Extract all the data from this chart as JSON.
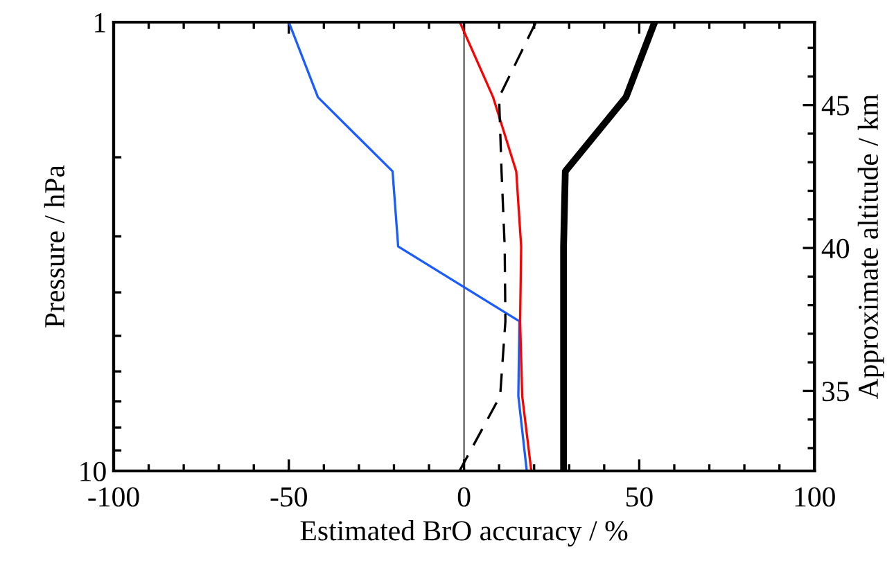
{
  "chart_data": {
    "type": "line",
    "xlabel": "Estimated BrO accuracy / %",
    "ylabel": "Pressure / hPa",
    "y2label": "Approximate altitude / km",
    "log": "y",
    "grid": false,
    "legend": false,
    "marker": "none",
    "xlim": [
      -100,
      100
    ],
    "xticks": [
      -100,
      {
        "value": -90,
        "label": null
      },
      {
        "value": -80,
        "label": null
      },
      {
        "value": -70,
        "label": null
      },
      {
        "value": -60,
        "label": null
      },
      -50,
      {
        "value": -40,
        "label": null
      },
      {
        "value": -30,
        "label": null
      },
      {
        "value": -20,
        "label": null
      },
      {
        "value": -10,
        "label": null
      },
      0,
      {
        "value": 10,
        "label": null
      },
      {
        "value": 20,
        "label": null
      },
      {
        "value": 30,
        "label": null
      },
      {
        "value": 40,
        "label": null
      },
      50,
      {
        "value": 60,
        "label": null
      },
      {
        "value": 70,
        "label": null
      },
      {
        "value": 80,
        "label": null
      },
      {
        "value": 90,
        "label": null
      },
      100
    ],
    "ylim": [
      10,
      1
    ],
    "yticks": [
      1,
      {
        "value": 2,
        "label": null
      },
      {
        "value": 3,
        "label": null
      },
      {
        "value": 4,
        "label": null
      },
      {
        "value": 5,
        "label": null
      },
      {
        "value": 6,
        "label": null
      },
      {
        "value": 7,
        "label": null
      },
      {
        "value": 8,
        "label": null
      },
      {
        "value": 9,
        "label": null
      },
      10
    ],
    "y2lim": [
      32.2,
      47.9
    ],
    "y2ticks": [
      {
        "value": 33,
        "label": null
      },
      {
        "value": 34,
        "label": null
      },
      35,
      {
        "value": 36,
        "label": null
      },
      {
        "value": 37,
        "label": null
      },
      {
        "value": 38,
        "label": null
      },
      {
        "value": 39,
        "label": null
      },
      40,
      {
        "value": 41,
        "label": null
      },
      {
        "value": 42,
        "label": null
      },
      {
        "value": 43,
        "label": null
      },
      {
        "value": 44,
        "label": null
      },
      45,
      {
        "value": 46,
        "label": null
      },
      {
        "value": 47,
        "label": null
      }
    ],
    "ref_lines": [
      {
        "axis": "x",
        "value": 0,
        "color": "#555555",
        "line_style": "solid"
      }
    ],
    "series": [
      {
        "color": "#1a5cff",
        "line_style": "solid",
        "x": [
          -50,
          -41.7,
          -20.4,
          -18.8,
          15.8,
          15.5,
          17.9
        ],
        "values": [
          1,
          1.47,
          2.15,
          3.16,
          4.64,
          6.81,
          10
        ]
      },
      {
        "color": "#ff0000",
        "line_style": "solid",
        "x": [
          -1.2,
          8.3,
          14.9,
          16.3,
          16,
          16.6,
          19.2
        ],
        "values": [
          1,
          1.47,
          2.15,
          3.16,
          4.64,
          6.81,
          10
        ]
      },
      {
        "color": "#000000",
        "line_style": "dashed",
        "x": [
          20.5,
          10,
          10.7,
          11.6,
          11.8,
          10.3,
          -1.3
        ],
        "values": [
          1,
          1.47,
          2.15,
          3.16,
          4.64,
          6.81,
          10
        ]
      },
      {
        "color": "#000000",
        "line_style": "solid",
        "x": [
          54.4,
          46.2,
          28.9,
          28.4,
          28.4,
          28.4,
          28.4
        ],
        "values": [
          1,
          1.47,
          2.15,
          3.16,
          4.64,
          6.81,
          10
        ]
      }
    ]
  }
}
